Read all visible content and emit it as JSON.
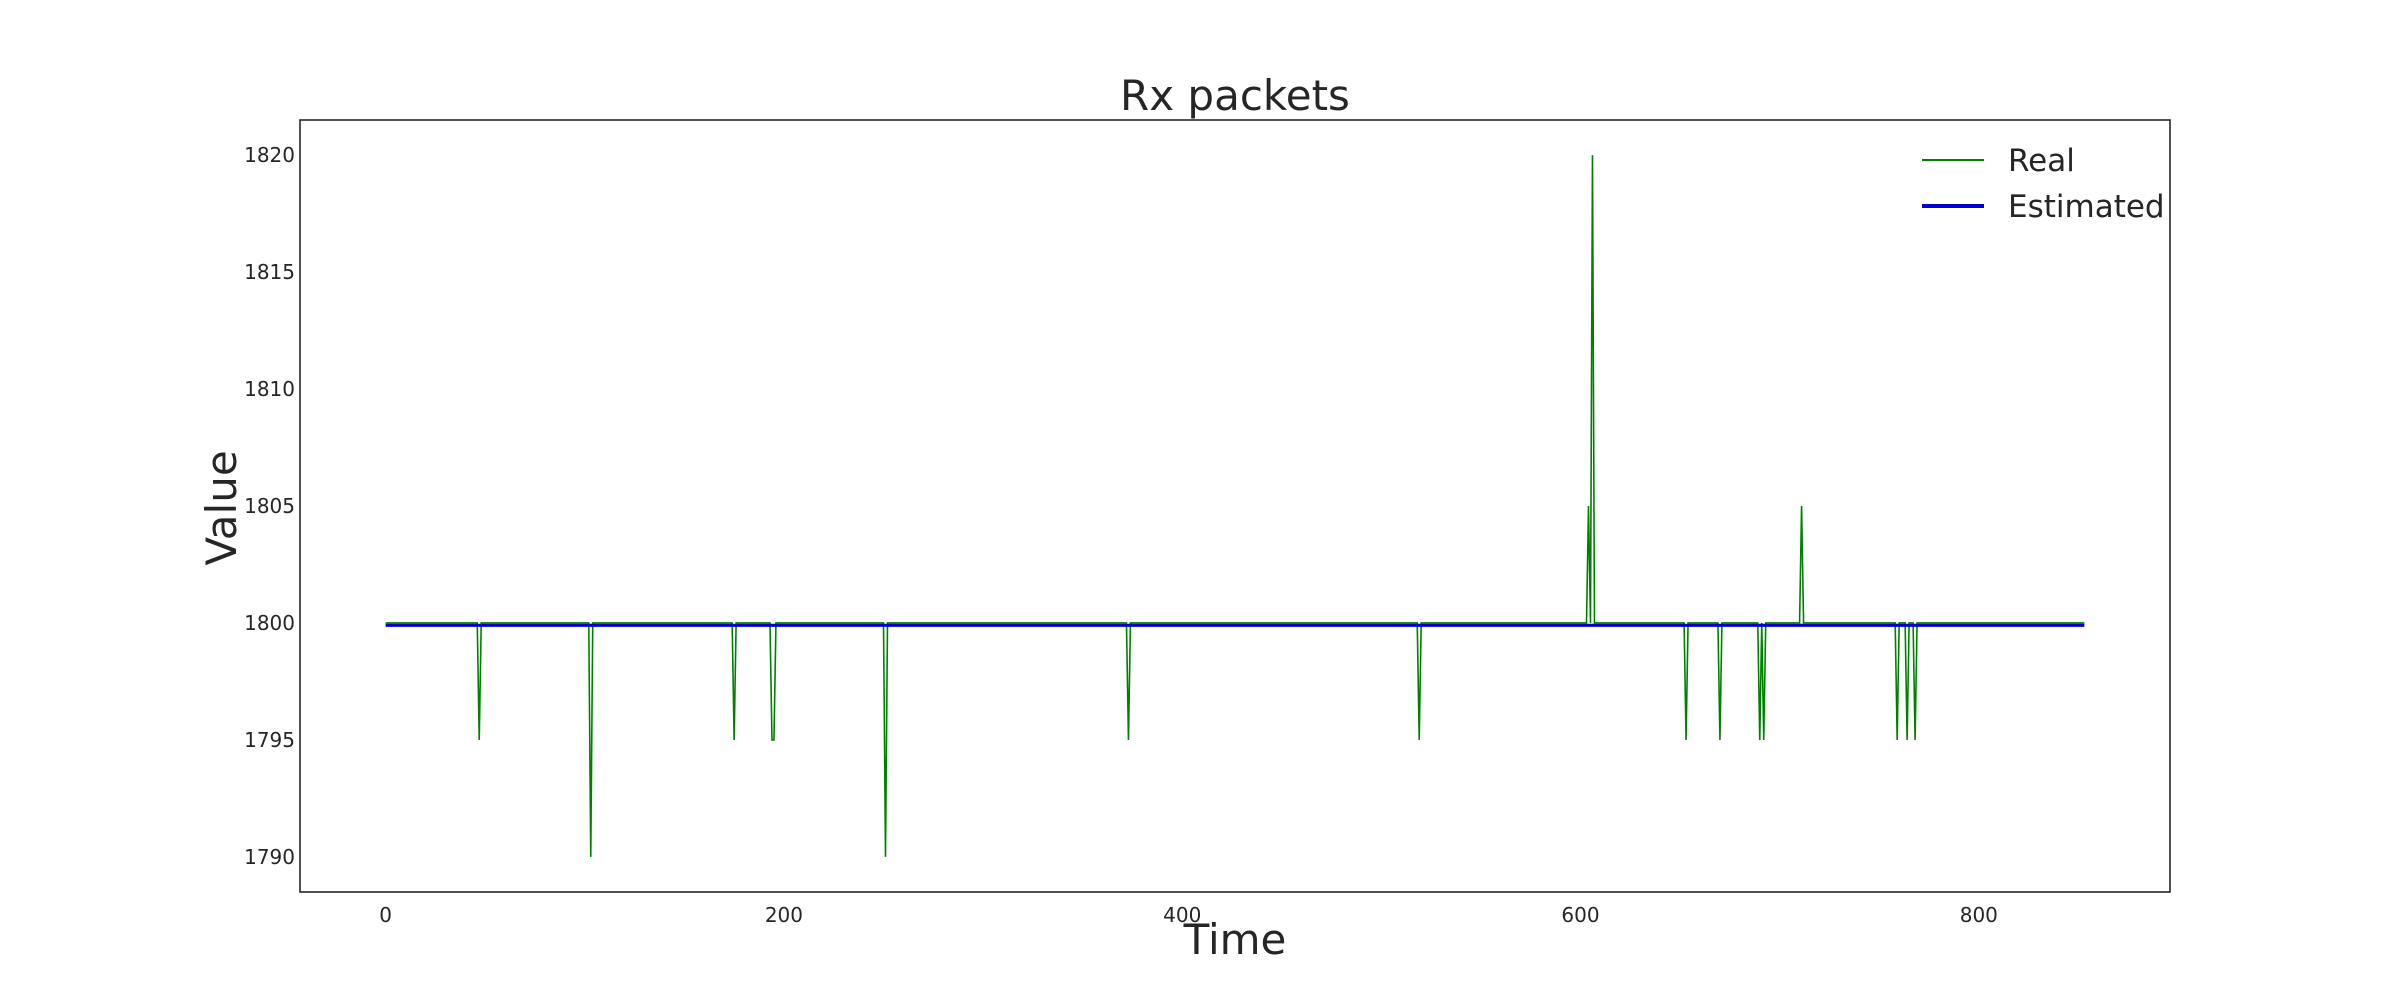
{
  "chart_data": {
    "type": "line",
    "title": "Rx packets",
    "xlabel": "Time",
    "ylabel": "Value",
    "xlim": [
      -43,
      896
    ],
    "ylim": [
      1788.5,
      1821.5
    ],
    "xticks": [
      0,
      200,
      400,
      600,
      800
    ],
    "yticks": [
      1790,
      1795,
      1800,
      1805,
      1810,
      1815,
      1820
    ],
    "grid": false,
    "legend": "upper right",
    "series": [
      {
        "name": "Real",
        "color": "#008000",
        "baseline": 1800,
        "x_range": [
          0,
          853
        ],
        "events": [
          [
            47,
            1795
          ],
          [
            103,
            1790
          ],
          [
            175,
            1795
          ],
          [
            194,
            1795
          ],
          [
            195,
            1795
          ],
          [
            251,
            1790
          ],
          [
            373,
            1795
          ],
          [
            519,
            1795
          ],
          [
            604,
            1805
          ],
          [
            606,
            1820
          ],
          [
            653,
            1795
          ],
          [
            670,
            1795
          ],
          [
            690,
            1795
          ],
          [
            692,
            1795
          ],
          [
            711,
            1805
          ],
          [
            759,
            1795
          ],
          [
            764,
            1795
          ],
          [
            768,
            1795
          ]
        ]
      },
      {
        "name": "Estimated",
        "color": "#0000cc",
        "values": [
          [
            0,
            1799.9
          ],
          [
            853,
            1799.9
          ]
        ]
      }
    ]
  }
}
